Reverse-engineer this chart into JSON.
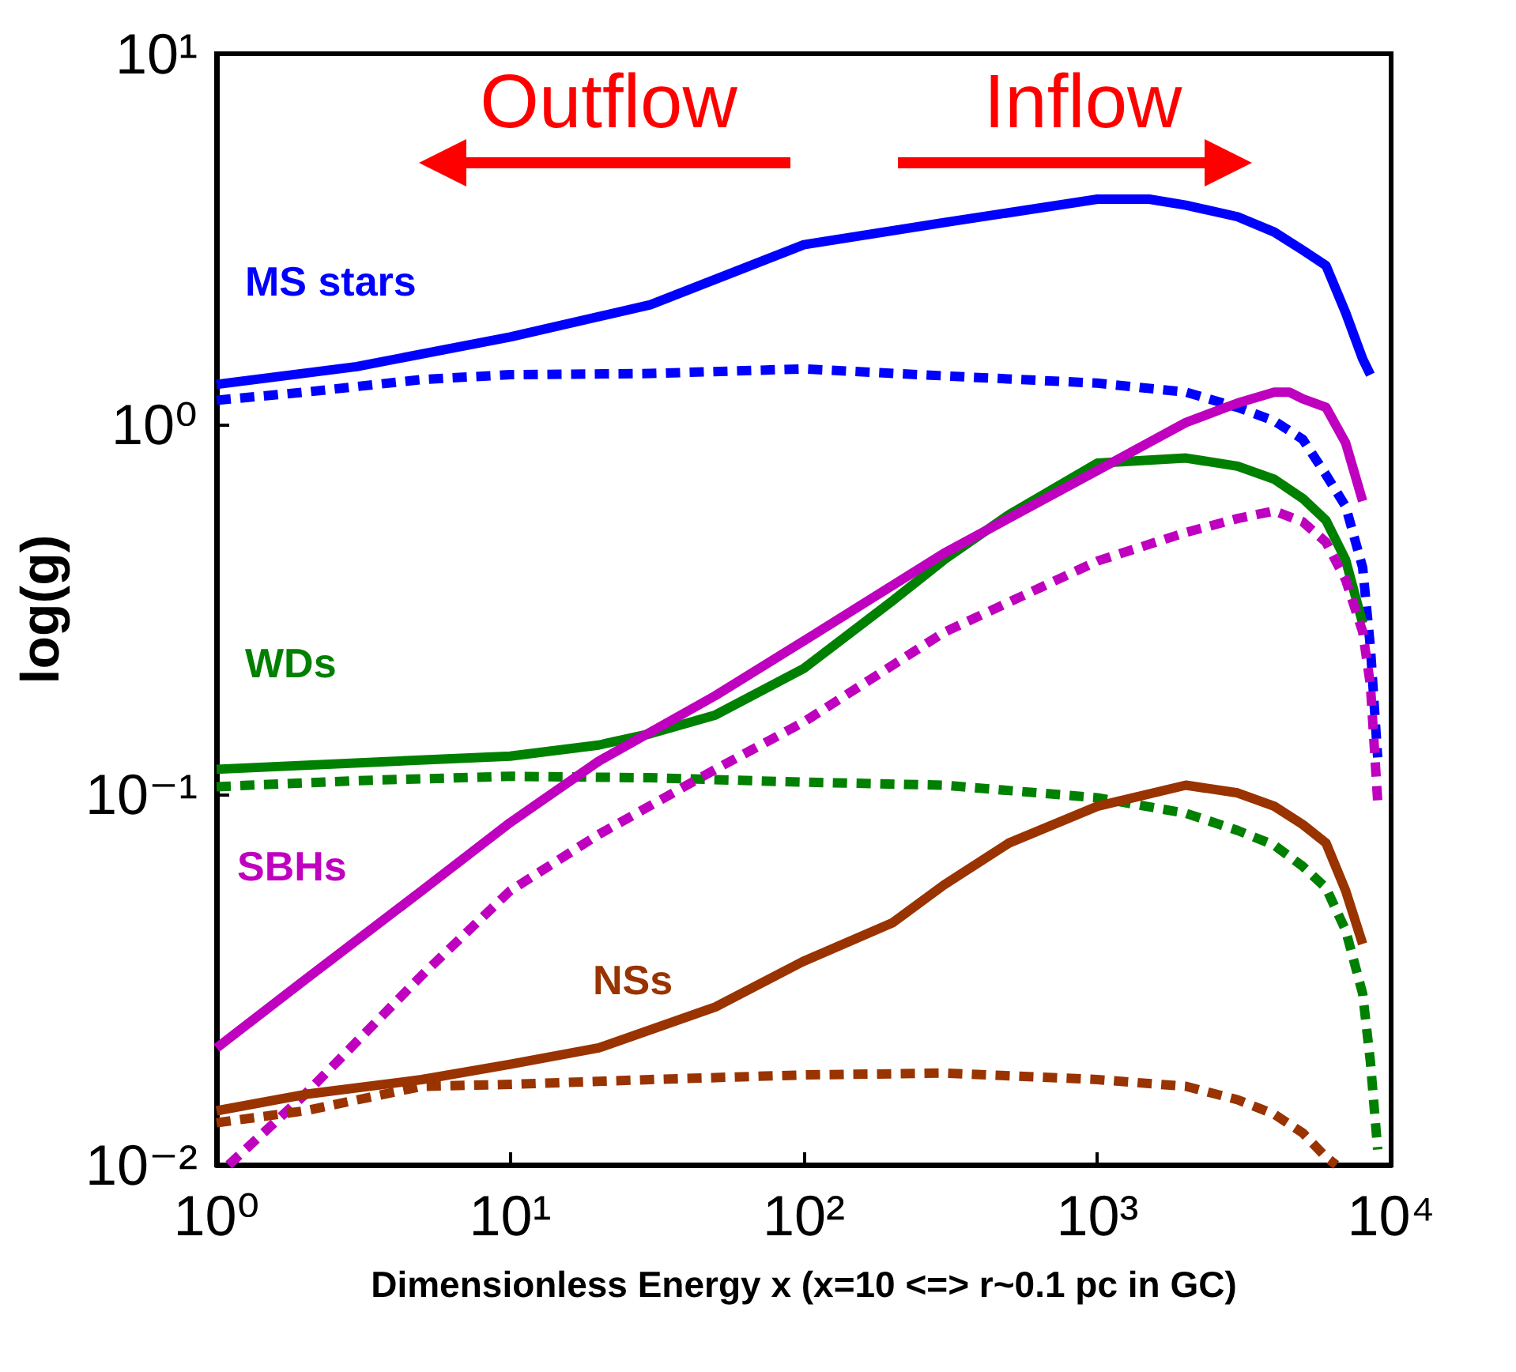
{
  "chart_data": {
    "type": "line",
    "xlabel": "Dimensionless Energy x (x=10 <=> r~0.1 pc in GC)",
    "ylabel": "log(g)",
    "log": "xy",
    "marker": "none",
    "xlim": [
      1,
      10000
    ],
    "xticks": [
      {
        "value": 1,
        "label": "10⁰"
      },
      {
        "value": 10,
        "label": "10¹"
      },
      {
        "value": 100,
        "label": "10²"
      },
      {
        "value": 1000,
        "label": "10³"
      },
      {
        "value": 10000,
        "label": "10⁴"
      }
    ],
    "ylim": [
      0.01,
      10
    ],
    "yticks": [
      {
        "value": 0.01,
        "label": "10⁻²"
      },
      {
        "value": 0.1,
        "label": "10⁻¹"
      },
      {
        "value": 1,
        "label": "10⁰"
      },
      {
        "value": 10,
        "label": "10¹"
      }
    ],
    "annotations": [
      "Outflow",
      "Inflow"
    ],
    "series": [
      {
        "name": "MS stars",
        "color": "#0000ff",
        "line_style": "solid",
        "x": [
          1,
          3,
          10,
          30,
          100,
          300,
          1000,
          1500,
          2000,
          3000,
          4000,
          5000,
          6000,
          7000,
          8000,
          8500
        ],
        "values": [
          1.28,
          1.43,
          1.72,
          2.1,
          3.05,
          3.5,
          4.05,
          4.05,
          3.9,
          3.63,
          3.3,
          2.95,
          2.68,
          2.0,
          1.5,
          1.36
        ]
      },
      {
        "color": "#0000ff",
        "line_style": "dashed",
        "x": [
          1,
          2,
          5,
          10,
          30,
          100,
          300,
          1000,
          2000,
          3000,
          4000,
          5000,
          6000,
          7000,
          8000,
          8500,
          9000
        ],
        "values": [
          1.16,
          1.22,
          1.32,
          1.36,
          1.37,
          1.41,
          1.35,
          1.29,
          1.22,
          1.11,
          1.02,
          0.91,
          0.73,
          0.6,
          0.41,
          0.25,
          0.126
        ]
      },
      {
        "name": "WDs",
        "color": "#008000",
        "line_style": "solid",
        "x": [
          1,
          10,
          20,
          30,
          50,
          100,
          200,
          300,
          500,
          1000,
          2000,
          3000,
          4000,
          5000,
          6000,
          7000,
          8000
        ],
        "values": [
          0.117,
          0.127,
          0.136,
          0.146,
          0.164,
          0.219,
          0.333,
          0.43,
          0.57,
          0.785,
          0.81,
          0.77,
          0.71,
          0.63,
          0.55,
          0.43,
          0.29
        ]
      },
      {
        "color": "#008000",
        "line_style": "dashed",
        "x": [
          1,
          3,
          10,
          30,
          100,
          300,
          1000,
          2000,
          3000,
          4000,
          5000,
          6000,
          7000,
          8000,
          8500,
          9000
        ],
        "values": [
          0.105,
          0.109,
          0.112,
          0.111,
          0.108,
          0.106,
          0.098,
          0.089,
          0.08,
          0.073,
          0.064,
          0.056,
          0.043,
          0.029,
          0.019,
          0.011
        ]
      },
      {
        "name": "SBHs",
        "color": "#bf00bf",
        "line_style": "solid",
        "x": [
          1,
          2,
          5,
          10,
          20,
          50,
          100,
          300,
          1000,
          2000,
          3000,
          4000,
          4500,
          5000,
          6000,
          7000,
          8000
        ],
        "values": [
          0.0207,
          0.0316,
          0.055,
          0.084,
          0.123,
          0.185,
          0.26,
          0.448,
          0.75,
          1.01,
          1.14,
          1.22,
          1.22,
          1.17,
          1.11,
          0.89,
          0.62
        ]
      },
      {
        "color": "#bf00bf",
        "line_style": "dashed",
        "x": [
          1.1,
          2,
          5,
          10,
          20,
          50,
          100,
          300,
          1000,
          2000,
          3000,
          4000,
          5000,
          6000,
          7000,
          8000,
          8500,
          9000
        ],
        "values": [
          0.01,
          0.0155,
          0.0325,
          0.055,
          0.078,
          0.117,
          0.157,
          0.274,
          0.427,
          0.51,
          0.556,
          0.583,
          0.545,
          0.48,
          0.38,
          0.275,
          0.198,
          0.096
        ]
      },
      {
        "name": "NSs",
        "color": "#993300",
        "line_style": "solid",
        "x": [
          1,
          2,
          5,
          10,
          20,
          50,
          100,
          200,
          300,
          500,
          1000,
          2000,
          3000,
          4000,
          5000,
          6000,
          7000,
          8000
        ],
        "values": [
          0.014,
          0.0155,
          0.017,
          0.0187,
          0.0207,
          0.0267,
          0.0355,
          0.045,
          0.057,
          0.074,
          0.093,
          0.106,
          0.101,
          0.093,
          0.083,
          0.074,
          0.055,
          0.0395
        ]
      },
      {
        "color": "#993300",
        "line_style": "dashed",
        "x": [
          1,
          2,
          5,
          10,
          30,
          100,
          300,
          1000,
          2000,
          3000,
          4000,
          5000,
          6000,
          6500
        ],
        "values": [
          0.013,
          0.014,
          0.0163,
          0.0165,
          0.017,
          0.0175,
          0.0177,
          0.017,
          0.0163,
          0.015,
          0.0137,
          0.0122,
          0.0105,
          0.01
        ]
      }
    ]
  }
}
